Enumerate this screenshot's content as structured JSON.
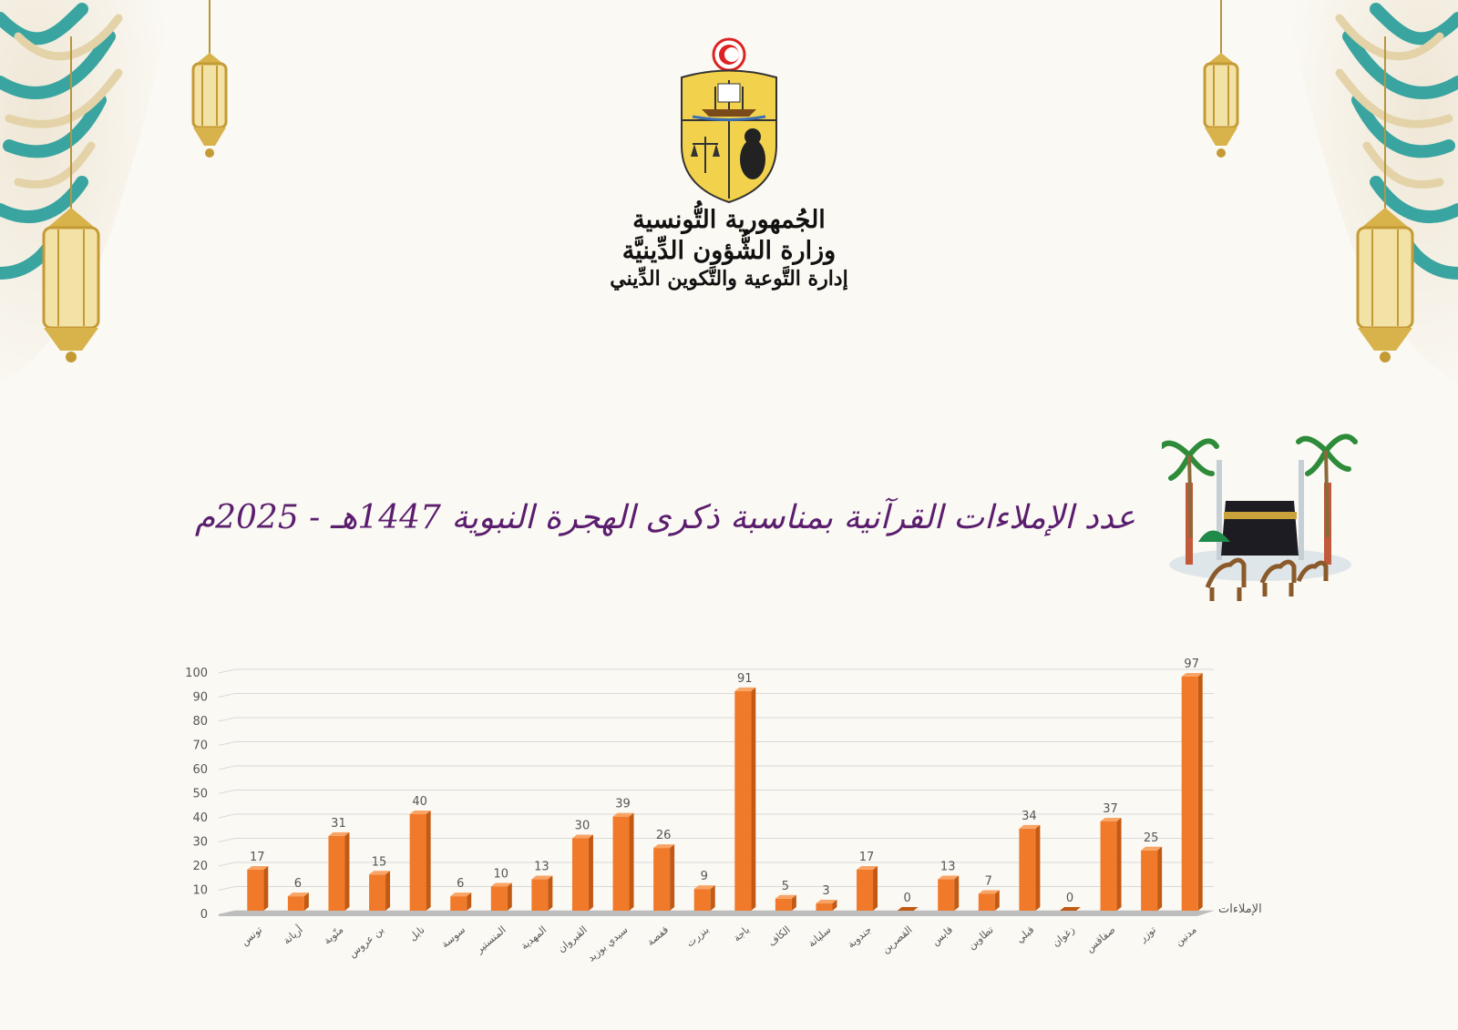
{
  "header": {
    "line1": "الجُمهورية التُّونسية",
    "line2": "وزارة الشُّؤون الدِّينيَّة",
    "line3": "إدارة التَّوعية والتَّكوين الدِّيني"
  },
  "title": "عدد الإملاءات القرآنية بمناسبة ذكرى الهجرة النبوية 1447هـ - 2025م",
  "colors": {
    "bar": "#f07a2a",
    "bar_top": "#f9a465",
    "bar_side": "#c25a14",
    "title": "#5b1e6e",
    "ornament": "#3aa5a0",
    "gold": "#d8b24a"
  },
  "chart_data": {
    "type": "bar",
    "categories": [
      "تونس",
      "أريانة",
      "منّوبة",
      "بن عروس",
      "نابل",
      "سوسة",
      "المنستير",
      "المهدية",
      "القيروان",
      "سيدي بوزيد",
      "قفصة",
      "بنزرت",
      "باجة",
      "الكاف",
      "سليانة",
      "جندوبة",
      "القصرين",
      "قابس",
      "تطاوين",
      "قبلي",
      "زغوان",
      "صفاقس",
      "توزر",
      "مدنين"
    ],
    "series": [
      {
        "name": "الإملاءات",
        "values": [
          17,
          6,
          31,
          15,
          40,
          6,
          10,
          13,
          30,
          39,
          26,
          9,
          91,
          5,
          3,
          17,
          0,
          13,
          7,
          34,
          0,
          37,
          25,
          97
        ]
      }
    ],
    "yticks": [
      0,
      10,
      20,
      30,
      40,
      50,
      60,
      70,
      80,
      90,
      100
    ],
    "ylim": [
      0,
      100
    ],
    "grid": true,
    "legend": "right"
  }
}
